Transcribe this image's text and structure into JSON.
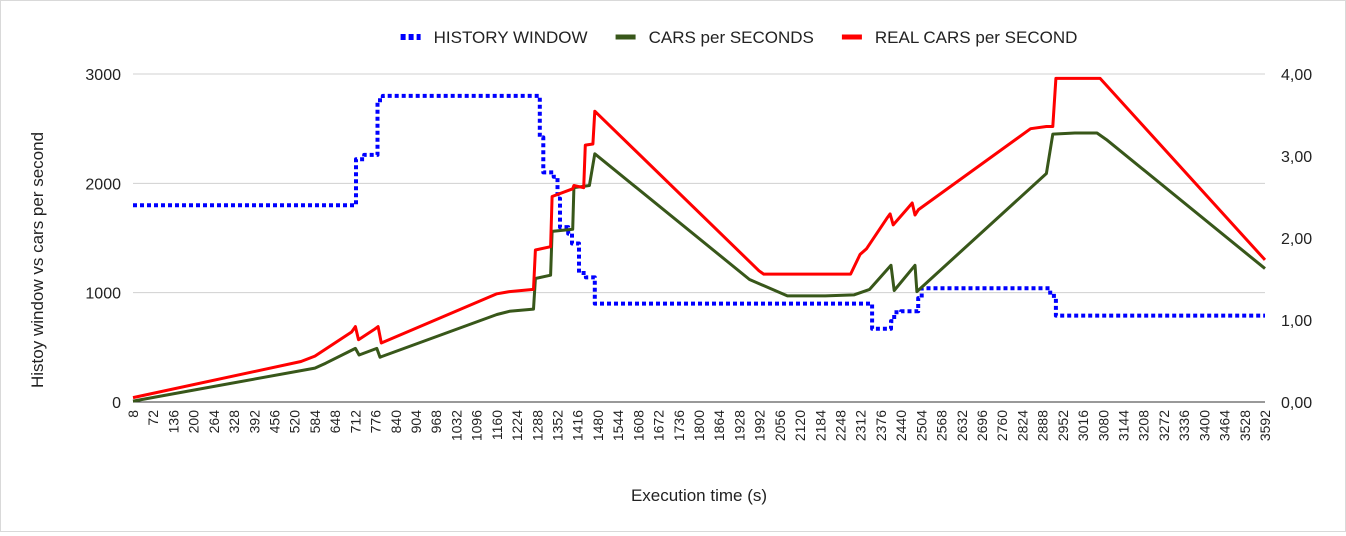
{
  "chart_data": {
    "type": "line",
    "title": "",
    "xlabel": "Execution time (s)",
    "ylabel": "Histoy window vs cars per second",
    "y2label": "",
    "ylim": [
      0,
      3000
    ],
    "y2lim": [
      0,
      4
    ],
    "xlim": [
      8,
      3592
    ],
    "grid": true,
    "legend_position": "top",
    "x_ticks": [
      "8",
      "72",
      "136",
      "200",
      "264",
      "328",
      "392",
      "456",
      "520",
      "584",
      "648",
      "712",
      "776",
      "840",
      "904",
      "968",
      "1032",
      "1096",
      "1160",
      "1224",
      "1288",
      "1352",
      "1416",
      "1480",
      "1544",
      "1608",
      "1672",
      "1736",
      "1800",
      "1864",
      "1928",
      "1992",
      "2056",
      "2120",
      "2184",
      "2248",
      "2312",
      "2376",
      "2440",
      "2504",
      "2568",
      "2632",
      "2696",
      "2760",
      "2824",
      "2888",
      "2952",
      "3016",
      "3080",
      "3144",
      "3208",
      "3272",
      "3336",
      "3400",
      "3464",
      "3528",
      "3592"
    ],
    "y_ticks": [
      "0",
      "1000",
      "2000",
      "3000"
    ],
    "y2_ticks": [
      "0,00",
      "1,00",
      "2,00",
      "3,00",
      "4,00"
    ],
    "series": [
      {
        "name": "HISTORY WINDOW",
        "axis": "left",
        "color": "#0000ff",
        "style": "dotted",
        "x": [
          8,
          714,
          714,
          740,
          740,
          782,
          782,
          799,
          799,
          1296,
          1296,
          1307,
          1307,
          1340,
          1340,
          1352,
          1352,
          1360,
          1360,
          1386,
          1386,
          1398,
          1398,
          1420,
          1420,
          1442,
          1442,
          1470,
          1470,
          2348,
          2348,
          2408,
          2408,
          2418,
          2418,
          2440,
          2440,
          2494,
          2494,
          2505,
          2505,
          2912,
          2912,
          2930,
          2930,
          3592
        ],
        "y": [
          1800,
          1800,
          2220,
          2220,
          2260,
          2260,
          2760,
          2760,
          2800,
          2800,
          2420,
          2420,
          2100,
          2100,
          2060,
          2060,
          1860,
          1860,
          1600,
          1600,
          1540,
          1540,
          1450,
          1450,
          1180,
          1180,
          1140,
          1140,
          900,
          900,
          670,
          670,
          740,
          740,
          820,
          820,
          830,
          830,
          950,
          950,
          1040,
          1040,
          970,
          970,
          790,
          790
        ]
      },
      {
        "name": "CARS per SECONDS",
        "axis": "left",
        "color": "#38571a",
        "style": "solid",
        "x": [
          8,
          584,
          618,
          712,
          724,
          780,
          790,
          1160,
          1200,
          1276,
          1282,
          1330,
          1335,
          1400,
          1404,
          1453,
          1470,
          1960,
          2080,
          2200,
          2290,
          2340,
          2408,
          2418,
          2484,
          2490,
          2900,
          2920,
          2990,
          3060,
          3090,
          3592
        ],
        "y": [
          8,
          310,
          355,
          490,
          430,
          490,
          410,
          800,
          830,
          850,
          1130,
          1160,
          1560,
          1580,
          1960,
          1980,
          2270,
          1120,
          970,
          970,
          980,
          1030,
          1250,
          1020,
          1250,
          1010,
          2090,
          2450,
          2460,
          2460,
          2400,
          1220
        ]
      },
      {
        "name": "REAL CARS per SECOND",
        "axis": "left",
        "color": "#ff0000",
        "style": "solid",
        "x": [
          8,
          540,
          584,
          700,
          712,
          722,
          770,
          784,
          794,
          1160,
          1200,
          1276,
          1282,
          1330,
          1335,
          1400,
          1404,
          1435,
          1440,
          1464,
          1470,
          1990,
          2005,
          2280,
          2310,
          2330,
          2346,
          2395,
          2405,
          2415,
          2460,
          2475,
          2484,
          2495,
          2850,
          2900,
          2920,
          2930,
          3070,
          3592
        ],
        "y": [
          40,
          370,
          420,
          640,
          690,
          570,
          660,
          690,
          540,
          990,
          1010,
          1030,
          1390,
          1420,
          1880,
          1950,
          1980,
          1960,
          2350,
          2360,
          2660,
          1200,
          1170,
          1170,
          1350,
          1400,
          1470,
          1680,
          1720,
          1620,
          1770,
          1820,
          1710,
          1760,
          2500,
          2520,
          2520,
          2960,
          2960,
          1300
        ]
      }
    ]
  }
}
